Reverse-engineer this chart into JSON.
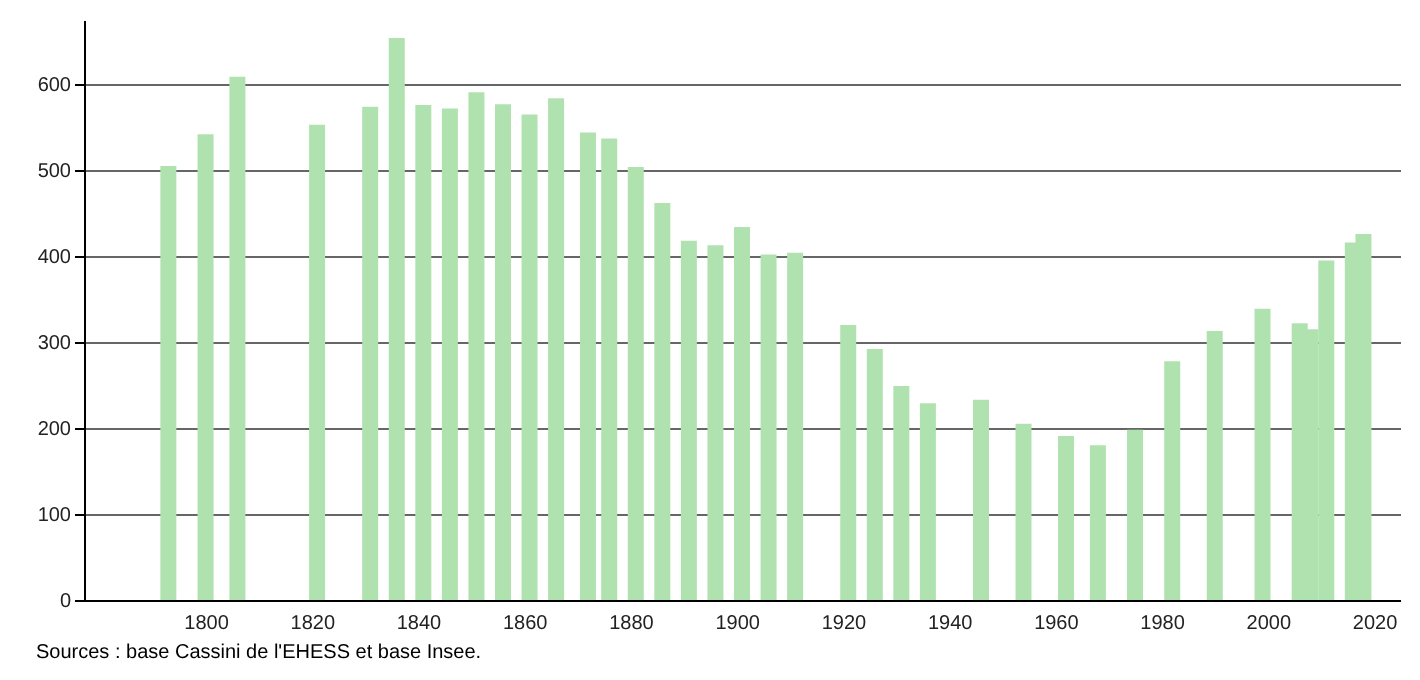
{
  "chart_data": {
    "type": "bar",
    "x": [
      1793,
      1800,
      1806,
      1821,
      1831,
      1836,
      1841,
      1846,
      1851,
      1856,
      1861,
      1866,
      1872,
      1876,
      1881,
      1886,
      1891,
      1896,
      1901,
      1906,
      1911,
      1921,
      1926,
      1931,
      1936,
      1946,
      1954,
      1962,
      1968,
      1975,
      1982,
      1990,
      1999,
      2006,
      2008,
      2011,
      2016,
      2018
    ],
    "values": [
      505,
      542,
      609,
      553,
      574,
      654,
      576,
      572,
      591,
      577,
      565,
      584,
      544,
      537,
      504,
      462,
      418,
      413,
      434,
      402,
      404,
      320,
      292,
      249,
      229,
      233,
      205,
      191,
      180,
      198,
      278,
      313,
      339,
      322,
      315,
      395,
      416,
      426
    ],
    "color": "#b0e2b0",
    "xlim": [
      1779,
      2023
    ],
    "xticks": [
      1800,
      1820,
      1840,
      1860,
      1880,
      1900,
      1920,
      1940,
      1960,
      1980,
      2000,
      2020
    ],
    "ylim": [
      0,
      675
    ],
    "yticks": [
      0,
      100,
      200,
      300,
      400,
      500,
      600
    ],
    "grid": "y",
    "annotations": [
      "Sources : base Cassini de l'EHESS et base Insee."
    ]
  }
}
